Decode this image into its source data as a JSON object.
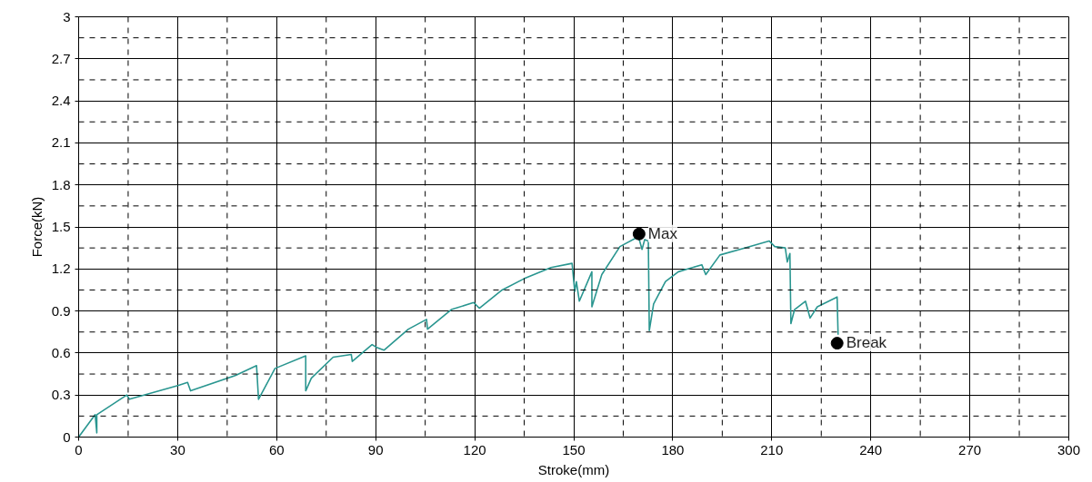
{
  "chart_data": {
    "type": "line",
    "xlabel": "Stroke(mm)",
    "ylabel": "Force(kN)",
    "xlim": [
      0,
      300
    ],
    "ylim": [
      0,
      3
    ],
    "xticks": [
      0,
      {
        "value": 15,
        "label": null
      },
      30,
      {
        "value": 45,
        "label": null
      },
      60,
      {
        "value": 75,
        "label": null
      },
      90,
      {
        "value": 105,
        "label": null
      },
      120,
      {
        "value": 135,
        "label": null
      },
      150,
      {
        "value": 165,
        "label": null
      },
      180,
      {
        "value": 195,
        "label": null
      },
      210,
      {
        "value": 225,
        "label": null
      },
      240,
      {
        "value": 255,
        "label": null
      },
      270,
      {
        "value": 285,
        "label": null
      },
      300
    ],
    "yticks": [
      0,
      {
        "value": 0.15,
        "label": null
      },
      0.3,
      {
        "value": 0.45,
        "label": null
      },
      0.6,
      {
        "value": 0.75,
        "label": null
      },
      0.9,
      {
        "value": 1.05,
        "label": null
      },
      1.2,
      {
        "value": 1.35,
        "label": null
      },
      1.5,
      {
        "value": 1.65,
        "label": null
      },
      1.8,
      {
        "value": 1.95,
        "label": null
      },
      2.1,
      {
        "value": 2.25,
        "label": null
      },
      2.4,
      {
        "value": 2.55,
        "label": null
      },
      2.7,
      {
        "value": 2.85,
        "label": null
      },
      3
    ],
    "grid": true,
    "line_style": "solid",
    "series": [
      {
        "color": "#2a9690",
        "marker": "none",
        "x": [
          0,
          5,
          5.5,
          5.5,
          14.6,
          15.4,
          30.3,
          33,
          33.9,
          47.6,
          53.9,
          54.5,
          59.5,
          68.8,
          68.8,
          70.5,
          77.1,
          82.6,
          82.9,
          88.9,
          90.3,
          92.5,
          99.9,
          105.4,
          105.7,
          112.9,
          119.7,
          121.4,
          128.3,
          134.9,
          143.1,
          149.5,
          150.3,
          150.8,
          151.7,
          155.5,
          155.5,
          158.5,
          164,
          169.6,
          170.7,
          171.5,
          172.6,
          172.9,
          174.2,
          177.8,
          181.7,
          188.8,
          190,
          194.3,
          201.8,
          209.2,
          210.9,
          214.1,
          214.7,
          215.5,
          215.8,
          216.9,
          220.2,
          221.6,
          223.8,
          229.8,
          230.1
        ],
        "values": [
          0,
          0.16,
          0.03,
          0.16,
          0.3,
          0.27,
          0.37,
          0.39,
          0.33,
          0.44,
          0.51,
          0.27,
          0.49,
          0.58,
          0.33,
          0.42,
          0.57,
          0.59,
          0.54,
          0.66,
          0.64,
          0.62,
          0.77,
          0.84,
          0.77,
          0.91,
          0.96,
          0.92,
          1.05,
          1.13,
          1.21,
          1.24,
          1.04,
          1.11,
          0.97,
          1.18,
          0.93,
          1.16,
          1.36,
          1.43,
          1.34,
          1.41,
          1.4,
          0.76,
          0.95,
          1.11,
          1.18,
          1.23,
          1.16,
          1.3,
          1.35,
          1.4,
          1.36,
          1.35,
          1.25,
          1.31,
          0.81,
          0.91,
          0.97,
          0.85,
          0.93,
          1.0,
          0.73
        ]
      },
      {
        "type": "scatter",
        "color": "#000000",
        "marker": "circle",
        "x": [
          169.8,
          229.8
        ],
        "values": [
          1.45,
          0.67
        ]
      }
    ],
    "annotations": [
      {
        "text": "Max",
        "x": 169.8,
        "y": 1.45
      },
      {
        "text": "Break",
        "x": 229.8,
        "y": 0.67
      }
    ]
  }
}
